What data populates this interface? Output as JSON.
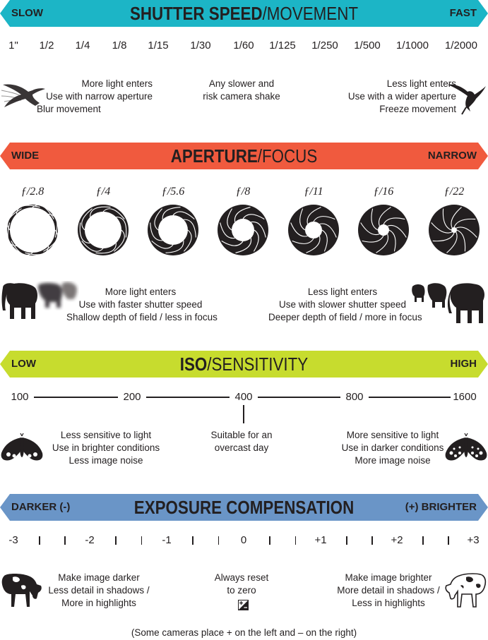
{
  "shutter": {
    "left": "SLOW",
    "title_bold": "SHUTTER SPEED",
    "title_light": "/MOVEMENT",
    "right": "FAST",
    "color": "#1cb5c6",
    "ticks": [
      "1\"",
      "1/2",
      "1/4",
      "1/8",
      "1/15",
      "1/30",
      "1/60",
      "1/125",
      "1/250",
      "1/500",
      "1/1000",
      "1/2000"
    ],
    "note_left": [
      "More light enters",
      "Use with narrow aperture",
      "Blur movement"
    ],
    "note_center": [
      "Any slower and",
      "risk camera shake"
    ],
    "note_right": [
      "Less light enters",
      "Use with a wider aperture",
      "Freeze movement"
    ],
    "icons": [
      "hummingbird-blurred-icon",
      "hummingbird-icon"
    ]
  },
  "aperture": {
    "left": "WIDE",
    "title_bold": "APERTURE",
    "title_light": "/FOCUS",
    "right": "NARROW",
    "color": "#f05a3e",
    "stops": [
      "ƒ/2.8",
      "ƒ/4",
      "ƒ/5.6",
      "ƒ/8",
      "ƒ/11",
      "ƒ/16",
      "ƒ/22"
    ],
    "note_left": [
      "More light enters",
      "Use with faster shutter speed",
      "Shallow depth of field / less in focus"
    ],
    "note_right": [
      "Less light enters",
      "Use with slower shutter speed",
      "Deeper depth of field / more in focus"
    ],
    "icons": [
      "elephant-blurred-icon",
      "elephant-herd-icon",
      "aperture-iris-icon"
    ]
  },
  "iso": {
    "left": "LOW",
    "title_bold": "ISO",
    "title_light": "/SENSITIVITY",
    "right": "HIGH",
    "color": "#c7dc2e",
    "ticks": [
      "100",
      "200",
      "400",
      "800",
      "1600"
    ],
    "note_left": [
      "Less sensitive to light",
      "Use in brighter conditions",
      "Less image noise"
    ],
    "note_center": [
      "Suitable for an",
      "overcast day"
    ],
    "note_right": [
      "More sensitive to light",
      "Use in darker conditions",
      "More image noise"
    ],
    "icons": [
      "moth-plain-icon",
      "moth-speckled-icon"
    ]
  },
  "exposure": {
    "left": "DARKER (-)",
    "title_bold": "EXPOSURE COMPENSATION",
    "right": "(+) BRIGHTER",
    "color": "#6a95c7",
    "ticks": [
      "-3",
      "-2",
      "-1",
      "0",
      "+1",
      "+2",
      "+3"
    ],
    "note_left": [
      "Make image darker",
      "Less detail in shadows /",
      "More in highlights"
    ],
    "note_center": [
      "Always reset",
      "to zero"
    ],
    "note_right": [
      "Make image brighter",
      "More detail in shadows /",
      "Less in highlights"
    ],
    "footnote": "(Some cameras place + on the left and – on the right)",
    "icons": [
      "cow-dark-icon",
      "cow-light-icon",
      "exposure-compensation-icon"
    ]
  }
}
